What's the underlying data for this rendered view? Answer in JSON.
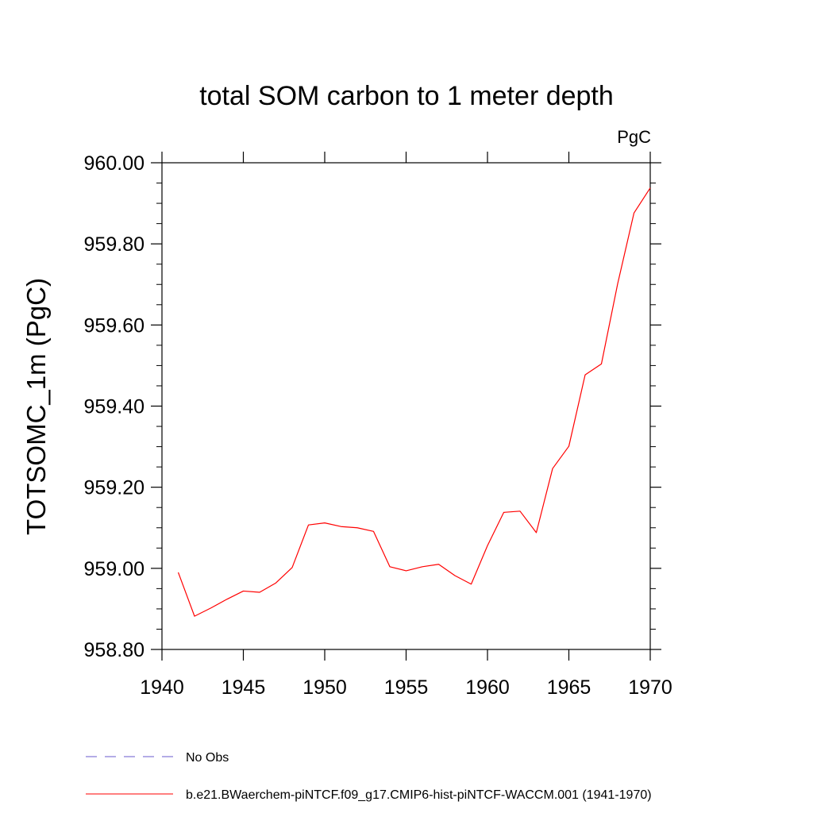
{
  "chart_data": {
    "type": "line",
    "title": "total SOM carbon to 1 meter depth",
    "units_label": "PgC",
    "ylabel": "TOTSOMC_1m  (PgC)",
    "xlabel": "",
    "xlim": [
      1940,
      1970
    ],
    "ylim": [
      958.8,
      960.0
    ],
    "x_ticks": [
      1940,
      1945,
      1950,
      1955,
      1960,
      1965,
      1970
    ],
    "x_tick_labels": [
      "1940",
      "1945",
      "1950",
      "1955",
      "1960",
      "1965",
      "1970"
    ],
    "y_ticks": [
      958.8,
      959.0,
      959.2,
      959.4,
      959.6,
      959.8,
      960.0
    ],
    "y_tick_labels": [
      "958.80",
      "959.00",
      "959.20",
      "959.40",
      "959.60",
      "959.80",
      "960.00"
    ],
    "series": [
      {
        "name": "b.e21.BWaerchem-piNTCF.f09_g17.CMIP6-hist-piNTCF-WACCM.001 (1941-1970)",
        "color": "#ff0000",
        "dash": "solid",
        "x": [
          1941,
          1942,
          1943,
          1944,
          1945,
          1946,
          1947,
          1948,
          1949,
          1950,
          1951,
          1952,
          1953,
          1954,
          1955,
          1956,
          1957,
          1958,
          1959,
          1960,
          1961,
          1962,
          1963,
          1964,
          1965,
          1966,
          1967,
          1968,
          1969,
          1970
        ],
        "y": [
          958.99,
          958.882,
          958.902,
          958.924,
          958.944,
          958.941,
          958.964,
          959.002,
          959.107,
          959.112,
          959.103,
          959.1,
          959.091,
          959.004,
          958.994,
          959.004,
          959.01,
          958.982,
          958.961,
          959.056,
          959.138,
          959.141,
          959.088,
          959.246,
          959.301,
          959.477,
          959.504,
          959.702,
          959.876,
          959.938
        ]
      }
    ],
    "legend": [
      {
        "label": "No Obs",
        "color": "#6a5acd",
        "dash": "dashed"
      },
      {
        "label": "b.e21.BWaerchem-piNTCF.f09_g17.CMIP6-hist-piNTCF-WACCM.001 (1941-1970)",
        "color": "#ff0000",
        "dash": "solid"
      }
    ],
    "legend_position": "bottom",
    "grid": false
  }
}
